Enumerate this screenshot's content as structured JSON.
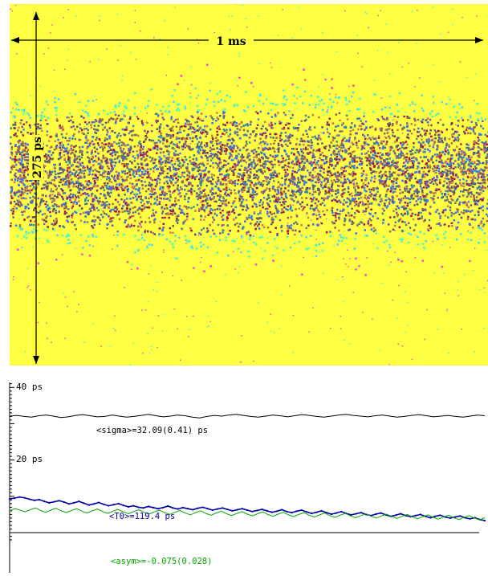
{
  "chart_data": [
    {
      "type": "heatmap",
      "description_key": "streak",
      "colors": {
        "background": "#ffff44",
        "outer": "#ff44dd",
        "outer2": "#ff5577",
        "mid": "#44ffbb",
        "mid2": "#44ddee",
        "inner": [
          "#3377ff",
          "#555577",
          "#996644",
          "#aa1144",
          "#338899",
          "#cc7755",
          "#7755aa"
        ]
      },
      "annotations": {
        "horizontal_span": "1 ms",
        "vertical_span": "275 ps"
      }
    },
    {
      "type": "line",
      "y_ticks": [
        {
          "value": 40,
          "label": "40 ps"
        },
        {
          "value": 20,
          "label": "20 ps"
        }
      ],
      "ylim": [
        -2,
        44
      ],
      "series": [
        {
          "key": "sigma",
          "color": "#000000",
          "label": "<sigma>=32.09(0.41) ps",
          "values": [
            32.1,
            32.3,
            32.0,
            31.8,
            32.2,
            32.4,
            32.1,
            31.7,
            31.9,
            32.3,
            32.5,
            32.2,
            31.9,
            32.0,
            32.4,
            32.1,
            31.8,
            32.0,
            32.3,
            32.6,
            32.2,
            31.9,
            32.1,
            32.4,
            32.2,
            31.8,
            31.6,
            32.0,
            32.3,
            32.1,
            32.4,
            32.6,
            32.3,
            32.0,
            31.8,
            32.1,
            32.4,
            32.2,
            31.9,
            32.2,
            32.5,
            32.3,
            32.0,
            31.8,
            32.1,
            32.4,
            32.6,
            32.3,
            32.1,
            31.9,
            32.2,
            32.4,
            32.1,
            31.8,
            32.0,
            32.3,
            32.5,
            32.2,
            31.9,
            32.1,
            32.3,
            32.0,
            31.8,
            32.1,
            32.4,
            32.2
          ]
        },
        {
          "key": "t0",
          "color": "#0000aa",
          "label": "<T0>=119.4 ps",
          "values": [
            9.3,
            9.5,
            9.8,
            9.6,
            9.2,
            8.9,
            9.1,
            8.6,
            8.2,
            8.5,
            8.8,
            8.4,
            7.9,
            8.2,
            8.6,
            8.1,
            7.6,
            7.9,
            8.3,
            7.8,
            7.4,
            7.7,
            8.0,
            7.5,
            7.1,
            7.4,
            7.0,
            6.8,
            7.2,
            6.9,
            6.6,
            6.9,
            7.3,
            6.8,
            6.5,
            6.9,
            6.6,
            6.3,
            6.7,
            7.0,
            6.6,
            6.2,
            6.5,
            6.8,
            6.4,
            6.0,
            6.3,
            6.6,
            6.2,
            5.8,
            6.1,
            6.4,
            6.0,
            5.6,
            5.9,
            6.3,
            5.8,
            5.5,
            5.9,
            6.2,
            5.7,
            5.3,
            5.6,
            6.0,
            5.5,
            5.1,
            5.4,
            5.8,
            5.3,
            4.9,
            5.2,
            5.5,
            5.0,
            4.7,
            5.1,
            5.4,
            4.9,
            4.5,
            4.8,
            5.2,
            4.7,
            4.4,
            4.7,
            5.0,
            4.5,
            4.1,
            4.5,
            4.8,
            4.3,
            4.0,
            4.3,
            4.6,
            4.1,
            3.8,
            4.1,
            3.6,
            3.3
          ]
        },
        {
          "key": "asym",
          "color": "#00aa00",
          "label": "<asym>=-0.075(0.028)",
          "values": [
            6.0,
            6.6,
            6.2,
            5.7,
            6.3,
            6.8,
            6.1,
            5.6,
            6.2,
            6.7,
            6.0,
            5.5,
            6.1,
            6.6,
            5.9,
            5.4,
            6.0,
            6.5,
            5.8,
            5.3,
            5.9,
            6.4,
            5.7,
            5.2,
            5.8,
            6.3,
            5.6,
            5.1,
            5.7,
            6.2,
            5.5,
            5.0,
            5.6,
            6.1,
            5.4,
            4.9,
            5.5,
            6.0,
            5.3,
            4.8,
            5.4,
            5.9,
            5.2,
            4.7,
            5.3,
            5.8,
            5.1,
            4.6,
            5.2,
            5.7,
            5.0,
            4.5,
            5.1,
            5.6,
            4.9,
            4.4,
            5.0,
            5.5,
            4.8,
            4.3,
            4.9,
            5.4,
            4.7,
            4.2,
            4.8,
            5.3,
            4.6,
            4.1,
            4.7,
            5.2,
            4.5,
            4.0,
            4.6,
            5.1,
            4.4,
            3.9,
            4.5,
            5.0,
            4.3,
            3.8,
            4.4,
            4.9,
            4.2,
            3.7,
            4.3,
            4.8,
            4.1,
            3.6,
            4.2,
            4.7,
            4.0,
            3.5,
            4.1
          ]
        }
      ]
    }
  ]
}
